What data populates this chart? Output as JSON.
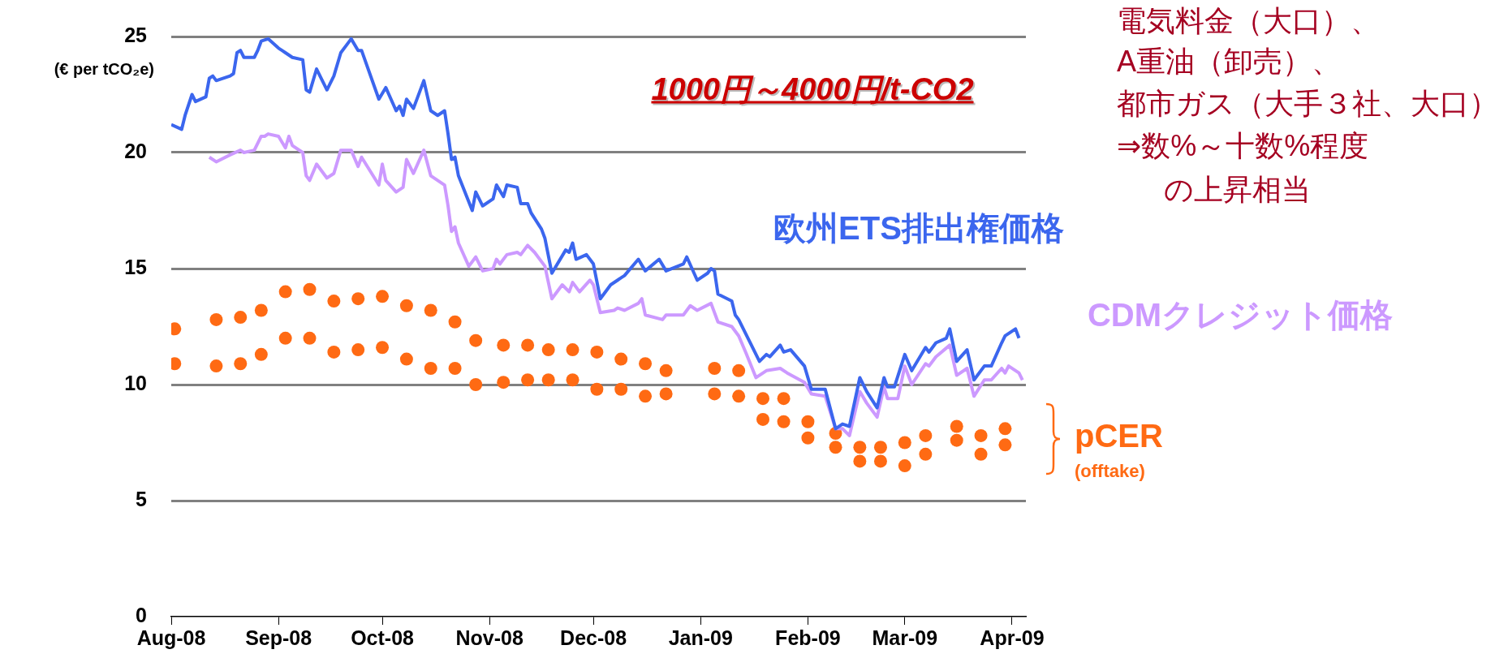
{
  "chart_data": {
    "type": "line",
    "ylabel": "(€ per tCO₂e)",
    "annotations": [
      "1000円～4000円/t-CO2",
      "電気料金（大口）、",
      "A重油（卸売）、",
      "都市ガス（大手３社、大口）",
      "⇒数%～十数%程度",
      "の上昇相当",
      "(offtake)"
    ],
    "xlim": [
      "2008-08-01",
      "2009-04-05"
    ],
    "xticks": [
      {
        "value": "2008-08-01",
        "label": "Aug-08"
      },
      {
        "value": "2008-09-01",
        "label": "Sep-08"
      },
      {
        "value": "2008-10-01",
        "label": "Oct-08"
      },
      {
        "value": "2008-11-01",
        "label": "Nov-08"
      },
      {
        "value": "2008-12-01",
        "label": "Dec-08"
      },
      {
        "value": "2009-01-01",
        "label": "Jan-09"
      },
      {
        "value": "2009-02-01",
        "label": "Feb-09"
      },
      {
        "value": "2009-03-01",
        "label": "Mar-09"
      },
      {
        "value": "2009-04-01",
        "label": "Apr-09"
      }
    ],
    "ylim": [
      0,
      25
    ],
    "yticks": [
      0,
      5,
      10,
      15,
      20,
      25
    ],
    "grid": "y",
    "series": [
      {
        "name": "欧州ETS排出権価格",
        "color": "#3b66ee",
        "type": "line",
        "x": [
          "2008-08-01",
          "2008-08-04",
          "2008-08-05",
          "2008-08-07",
          "2008-08-08",
          "2008-08-11",
          "2008-08-12",
          "2008-08-13",
          "2008-08-14",
          "2008-08-18",
          "2008-08-19",
          "2008-08-20",
          "2008-08-21",
          "2008-08-22",
          "2008-08-25",
          "2008-08-26",
          "2008-08-27",
          "2008-08-29",
          "2008-09-01",
          "2008-09-02",
          "2008-09-03",
          "2008-09-05",
          "2008-09-08",
          "2008-09-09",
          "2008-09-10",
          "2008-09-12",
          "2008-09-15",
          "2008-09-17",
          "2008-09-19",
          "2008-09-21",
          "2008-09-22",
          "2008-09-24",
          "2008-09-25",
          "2008-09-30",
          "2008-10-02",
          "2008-10-05",
          "2008-10-06",
          "2008-10-07",
          "2008-10-08",
          "2008-10-10",
          "2008-10-13",
          "2008-10-15",
          "2008-10-17",
          "2008-10-19",
          "2008-10-20",
          "2008-10-21",
          "2008-10-22",
          "2008-10-23",
          "2008-10-27",
          "2008-10-28",
          "2008-10-30",
          "2008-11-02",
          "2008-11-03",
          "2008-11-05",
          "2008-11-06",
          "2008-11-09",
          "2008-11-10",
          "2008-11-12",
          "2008-11-13",
          "2008-11-16",
          "2008-11-17",
          "2008-11-19",
          "2008-11-23",
          "2008-11-24",
          "2008-11-25",
          "2008-11-26",
          "2008-11-29",
          "2008-12-01",
          "2008-12-03",
          "2008-12-06",
          "2008-12-09",
          "2008-12-10",
          "2008-12-14",
          "2008-12-16",
          "2008-12-20",
          "2008-12-22",
          "2008-12-27",
          "2008-12-28",
          "2008-12-31",
          "2009-01-03",
          "2009-01-04",
          "2009-01-05",
          "2009-01-06",
          "2009-01-10",
          "2009-01-11",
          "2009-01-12",
          "2009-01-15",
          "2009-01-18",
          "2009-01-20",
          "2009-01-21",
          "2009-01-24",
          "2009-01-25",
          "2009-01-27",
          "2009-01-31",
          "2009-02-02",
          "2009-02-06",
          "2009-02-09",
          "2009-02-11",
          "2009-02-13",
          "2009-02-16",
          "2009-02-18",
          "2009-02-21",
          "2009-02-23",
          "2009-02-24",
          "2009-02-26",
          "2009-03-01",
          "2009-03-03",
          "2009-03-07",
          "2009-03-08",
          "2009-03-10",
          "2009-03-13",
          "2009-03-14",
          "2009-03-16",
          "2009-03-19",
          "2009-03-21",
          "2009-03-24",
          "2009-03-26",
          "2009-03-29",
          "2009-03-30",
          "2009-04-02",
          "2009-04-03"
        ],
        "values": [
          21.2,
          21.0,
          21.6,
          22.5,
          22.2,
          22.4,
          23.2,
          23.3,
          23.1,
          23.3,
          23.4,
          24.3,
          24.4,
          24.1,
          24.1,
          24.4,
          24.8,
          24.9,
          24.5,
          24.4,
          24.3,
          24.1,
          24.0,
          22.7,
          22.6,
          23.6,
          22.7,
          23.3,
          24.3,
          24.7,
          24.9,
          24.4,
          24.4,
          22.3,
          22.8,
          21.8,
          22.0,
          21.6,
          22.3,
          21.9,
          23.1,
          21.8,
          21.6,
          21.8,
          20.8,
          19.7,
          19.8,
          19.0,
          17.5,
          18.3,
          17.7,
          18.0,
          18.6,
          18.1,
          18.6,
          18.5,
          17.8,
          17.8,
          17.4,
          16.7,
          16.3,
          14.8,
          15.8,
          15.7,
          16.1,
          15.4,
          15.6,
          15.2,
          13.7,
          14.3,
          14.6,
          14.7,
          15.4,
          14.9,
          15.4,
          14.9,
          15.2,
          15.5,
          14.5,
          14.8,
          15.0,
          14.9,
          13.9,
          13.6,
          13.0,
          12.8,
          11.9,
          11.0,
          11.3,
          11.2,
          11.7,
          11.4,
          11.5,
          10.8,
          9.8,
          9.8,
          8.1,
          8.3,
          8.2,
          10.3,
          9.7,
          9.0,
          10.3,
          9.9,
          9.9,
          11.3,
          10.6,
          11.6,
          11.4,
          11.8,
          12.0,
          12.4,
          11.0,
          11.5,
          10.2,
          10.8,
          10.8,
          11.8,
          12.1,
          12.4,
          12.0
        ]
      },
      {
        "name": "CDMクレジット価格",
        "color": "#cc99ff",
        "type": "line",
        "x": [
          "2008-08-12",
          "2008-08-14",
          "2008-08-18",
          "2008-08-21",
          "2008-08-22",
          "2008-08-25",
          "2008-08-27",
          "2008-08-28",
          "2008-08-29",
          "2008-09-01",
          "2008-09-03",
          "2008-09-04",
          "2008-09-05",
          "2008-09-08",
          "2008-09-09",
          "2008-09-10",
          "2008-09-12",
          "2008-09-15",
          "2008-09-17",
          "2008-09-19",
          "2008-09-22",
          "2008-09-24",
          "2008-09-25",
          "2008-09-30",
          "2008-10-01",
          "2008-10-02",
          "2008-10-05",
          "2008-10-07",
          "2008-10-08",
          "2008-10-10",
          "2008-10-13",
          "2008-10-15",
          "2008-10-19",
          "2008-10-20",
          "2008-10-21",
          "2008-10-22",
          "2008-10-23",
          "2008-10-26",
          "2008-10-28",
          "2008-10-30",
          "2008-11-02",
          "2008-11-03",
          "2008-11-04",
          "2008-11-06",
          "2008-11-09",
          "2008-11-10",
          "2008-11-12",
          "2008-11-14",
          "2008-11-17",
          "2008-11-19",
          "2008-11-22",
          "2008-11-24",
          "2008-11-25",
          "2008-11-27",
          "2008-11-30",
          "2008-12-01",
          "2008-12-03",
          "2008-12-07",
          "2008-12-08",
          "2008-12-10",
          "2008-12-14",
          "2008-12-15",
          "2008-12-16",
          "2008-12-21",
          "2008-12-22",
          "2008-12-27",
          "2008-12-29",
          "2008-12-31",
          "2009-01-04",
          "2009-01-06",
          "2009-01-10",
          "2009-01-12",
          "2009-01-14",
          "2009-01-17",
          "2009-01-20",
          "2009-01-24",
          "2009-01-26",
          "2009-01-31",
          "2009-02-02",
          "2009-02-06",
          "2009-02-09",
          "2009-02-11",
          "2009-02-13",
          "2009-02-16",
          "2009-02-18",
          "2009-02-21",
          "2009-02-23",
          "2009-02-24",
          "2009-02-27",
          "2009-03-01",
          "2009-03-03",
          "2009-03-07",
          "2009-03-08",
          "2009-03-10",
          "2009-03-14",
          "2009-03-16",
          "2009-03-19",
          "2009-03-21",
          "2009-03-24",
          "2009-03-26",
          "2009-03-29",
          "2009-03-30",
          "2009-03-31",
          "2009-04-03",
          "2009-04-04"
        ],
        "values": [
          19.8,
          19.6,
          19.9,
          20.1,
          20.0,
          20.1,
          20.7,
          20.7,
          20.8,
          20.7,
          20.2,
          20.7,
          20.3,
          20.0,
          19.0,
          18.8,
          19.5,
          18.9,
          19.1,
          20.1,
          20.1,
          19.4,
          19.8,
          18.6,
          19.5,
          18.8,
          18.3,
          18.5,
          19.7,
          19.1,
          20.1,
          19.0,
          18.6,
          17.7,
          16.6,
          16.8,
          16.1,
          15.1,
          15.5,
          14.9,
          15.0,
          15.4,
          15.2,
          15.6,
          15.7,
          15.6,
          16.0,
          15.7,
          15.1,
          13.7,
          14.3,
          14.0,
          14.4,
          14.0,
          14.5,
          14.3,
          13.1,
          13.2,
          13.3,
          13.2,
          13.5,
          13.7,
          13.0,
          12.8,
          13.0,
          13.0,
          13.4,
          13.2,
          13.5,
          12.7,
          12.5,
          12.1,
          11.4,
          10.3,
          10.6,
          10.7,
          10.5,
          10.1,
          9.6,
          9.5,
          8.1,
          8.1,
          7.8,
          9.7,
          9.2,
          8.6,
          9.9,
          9.4,
          9.4,
          10.8,
          10.0,
          10.9,
          10.8,
          11.2,
          11.7,
          10.4,
          10.7,
          9.5,
          10.2,
          10.2,
          10.7,
          10.5,
          10.8,
          10.5,
          10.2
        ]
      },
      {
        "name": "pCER",
        "color": "#ff6a13",
        "type": "scatter",
        "marker": "circle",
        "x": [
          "2008-08-02",
          "2008-08-14",
          "2008-08-21",
          "2008-08-27",
          "2008-09-03",
          "2008-09-10",
          "2008-09-17",
          "2008-09-24",
          "2008-10-01",
          "2008-10-08",
          "2008-10-15",
          "2008-10-22",
          "2008-10-28",
          "2008-11-05",
          "2008-11-12",
          "2008-11-18",
          "2008-11-25",
          "2008-12-02",
          "2008-12-09",
          "2008-12-16",
          "2008-12-22",
          "2009-01-05",
          "2009-01-12",
          "2009-01-19",
          "2009-01-25",
          "2009-02-01",
          "2009-02-09",
          "2009-02-16",
          "2009-02-22",
          "2009-03-01",
          "2009-03-07",
          "2009-03-16",
          "2009-03-23",
          "2009-03-30"
        ],
        "values": [
          12.4,
          12.8,
          12.9,
          13.2,
          14.0,
          14.1,
          13.6,
          13.7,
          13.8,
          13.4,
          13.2,
          12.7,
          11.9,
          11.7,
          11.7,
          11.5,
          11.5,
          11.4,
          11.1,
          10.9,
          10.6,
          10.7,
          10.6,
          9.4,
          9.4,
          8.4,
          7.9,
          7.3,
          7.3,
          7.5,
          7.8,
          8.2,
          7.8,
          8.1
        ]
      },
      {
        "color": "#ff6a13",
        "type": "scatter",
        "marker": "circle",
        "x": [
          "2008-08-02",
          "2008-08-14",
          "2008-08-21",
          "2008-08-27",
          "2008-09-03",
          "2008-09-10",
          "2008-09-17",
          "2008-09-24",
          "2008-10-01",
          "2008-10-08",
          "2008-10-15",
          "2008-10-22",
          "2008-10-28",
          "2008-11-05",
          "2008-11-12",
          "2008-11-18",
          "2008-11-25",
          "2008-12-02",
          "2008-12-09",
          "2008-12-16",
          "2008-12-22",
          "2009-01-05",
          "2009-01-12",
          "2009-01-19",
          "2009-01-25",
          "2009-02-01",
          "2009-02-09",
          "2009-02-16",
          "2009-02-22",
          "2009-03-01",
          "2009-03-07",
          "2009-03-16",
          "2009-03-23",
          "2009-03-30"
        ],
        "values": [
          10.9,
          10.8,
          10.9,
          11.3,
          12.0,
          12.0,
          11.4,
          11.5,
          11.6,
          11.1,
          10.7,
          10.7,
          10.0,
          10.1,
          10.2,
          10.2,
          10.2,
          9.8,
          9.8,
          9.5,
          9.6,
          9.6,
          9.5,
          8.5,
          8.4,
          7.7,
          7.3,
          6.7,
          6.7,
          6.5,
          7.0,
          7.6,
          7.0,
          7.4
        ]
      }
    ]
  }
}
